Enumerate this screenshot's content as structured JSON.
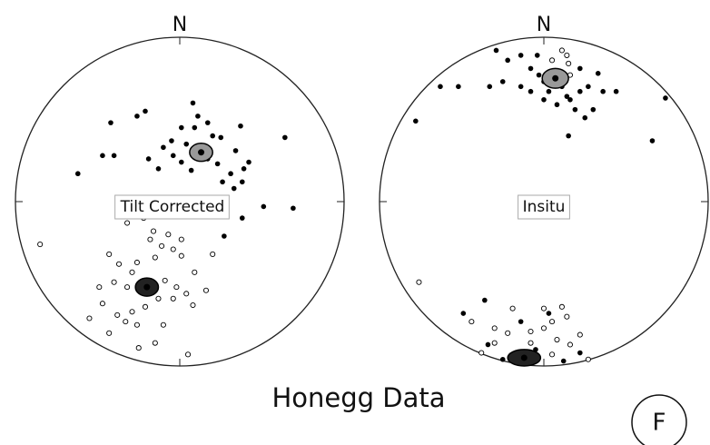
{
  "title": "Honegg Data",
  "panel_label": "F",
  "chart_data": [
    {
      "type": "stereonet",
      "north_label": "N",
      "label": "Tilt Corrected",
      "xlim": [
        -1,
        1
      ],
      "ylim": [
        -1,
        1
      ],
      "series": [
        {
          "color": "#000000",
          "open": false,
          "x": [
            0.08,
            -0.21,
            -0.26,
            -0.42,
            0.11,
            0.17,
            0.01,
            0.09,
            0.2,
            0.25,
            -0.05,
            0.04,
            0.15,
            0.34,
            0.42,
            0.39,
            0.31,
            0.23,
            0.17,
            0.26,
            0.33,
            0.38,
            0.38,
            0.51,
            0.69,
            0.64,
            -0.47,
            -0.4,
            -0.62,
            -0.19,
            -0.13,
            -0.04,
            0.01,
            0.07,
            -0.1,
            0.37,
            0.27,
            -0.32
          ],
          "y": [
            0.6,
            0.55,
            0.52,
            0.48,
            0.52,
            0.48,
            0.45,
            0.45,
            0.4,
            0.39,
            0.37,
            0.35,
            0.34,
            0.31,
            0.24,
            0.2,
            0.17,
            0.23,
            0.26,
            0.12,
            0.08,
            0.12,
            -0.1,
            -0.03,
            -0.04,
            0.39,
            0.28,
            0.28,
            0.17,
            0.26,
            0.2,
            0.28,
            0.24,
            0.19,
            0.33,
            0.46,
            -0.21,
            0.02
          ]
        },
        {
          "color": "#000000",
          "open": true,
          "x": [
            -0.85,
            -0.32,
            -0.22,
            -0.16,
            -0.07,
            -0.11,
            -0.04,
            0.01,
            -0.15,
            -0.26,
            -0.37,
            -0.29,
            -0.4,
            -0.32,
            -0.09,
            -0.02,
            0.04,
            -0.04,
            -0.13,
            0.16,
            0.08,
            -0.21,
            -0.29,
            -0.38,
            -0.33,
            -0.26,
            -0.43,
            -0.55,
            -0.47,
            -0.49,
            -0.1,
            -0.15,
            -0.25,
            0.05,
            0.09,
            -0.18,
            0.01,
            -0.43,
            0.2
          ],
          "y": [
            -0.26,
            -0.13,
            -0.1,
            -0.18,
            -0.2,
            -0.27,
            -0.29,
            -0.33,
            -0.34,
            -0.37,
            -0.38,
            -0.43,
            -0.49,
            -0.52,
            -0.48,
            -0.52,
            -0.56,
            -0.59,
            -0.59,
            -0.54,
            -0.63,
            -0.64,
            -0.67,
            -0.69,
            -0.73,
            -0.75,
            -0.8,
            -0.71,
            -0.62,
            -0.52,
            -0.75,
            -0.86,
            -0.89,
            -0.93,
            -0.43,
            -0.23,
            -0.23,
            -0.32,
            -0.32
          ]
        }
      ],
      "means": [
        {
          "x": 0.13,
          "y": 0.3,
          "rx": 0.07,
          "ry": 0.055,
          "color": "#999999"
        },
        {
          "x": -0.2,
          "y": -0.52,
          "rx": 0.07,
          "ry": 0.055,
          "color": "#222222"
        }
      ]
    },
    {
      "type": "stereonet",
      "north_label": "N",
      "label": "Insitu",
      "xlim": [
        -1,
        1
      ],
      "ylim": [
        -1,
        1
      ],
      "series": [
        {
          "color": "#000000",
          "open": false,
          "x": [
            -0.29,
            -0.22,
            -0.14,
            -0.08,
            -0.03,
            0,
            0.03,
            0.11,
            0.14,
            0.16,
            0.22,
            0.27,
            0.33,
            0.36,
            0.3,
            0.15,
            0.66,
            0.74,
            -0.52,
            -0.63,
            -0.78,
            -0.33,
            -0.25,
            -0.14,
            -0.08,
            0,
            0.08,
            0.19,
            0.25,
            0.44,
            -0.04,
            0.22,
            -0.36,
            -0.49,
            -0.14,
            0.03,
            -0.34,
            -0.25,
            0.12,
            0.22,
            -0.05
          ],
          "y": [
            0.92,
            0.86,
            0.89,
            0.81,
            0.77,
            0.73,
            0.67,
            0.7,
            0.64,
            0.62,
            0.67,
            0.7,
            0.78,
            0.67,
            0.56,
            0.4,
            0.37,
            0.63,
            0.7,
            0.7,
            0.49,
            0.7,
            0.73,
            0.7,
            0.67,
            0.62,
            0.59,
            0.56,
            0.51,
            0.67,
            0.89,
            0.81,
            -0.6,
            -0.68,
            -0.73,
            -0.68,
            -0.87,
            -0.96,
            -0.97,
            -0.92,
            -0.9
          ]
        },
        {
          "color": "#000000",
          "open": true,
          "x": [
            0.11,
            0.14,
            0.15,
            0.05,
            0.16,
            -0.76,
            -0.44,
            -0.3,
            -0.22,
            -0.08,
            0,
            0.05,
            0.14,
            0.08,
            0.16,
            0.22,
            0.27,
            -0.19,
            0,
            0.11,
            -0.3,
            -0.38,
            0.05,
            -0.08
          ],
          "y": [
            0.92,
            0.89,
            0.84,
            0.86,
            0.77,
            -0.49,
            -0.73,
            -0.77,
            -0.8,
            -0.79,
            -0.77,
            -0.73,
            -0.7,
            -0.84,
            -0.87,
            -0.81,
            -0.96,
            -0.65,
            -0.65,
            -0.64,
            -0.86,
            -0.92,
            -0.93,
            -0.86
          ]
        }
      ],
      "means": [
        {
          "x": 0.07,
          "y": 0.75,
          "rx": 0.08,
          "ry": 0.06,
          "color": "#999999"
        },
        {
          "x": -0.12,
          "y": -0.95,
          "rx": 0.1,
          "ry": 0.05,
          "color": "#222222"
        }
      ]
    }
  ]
}
